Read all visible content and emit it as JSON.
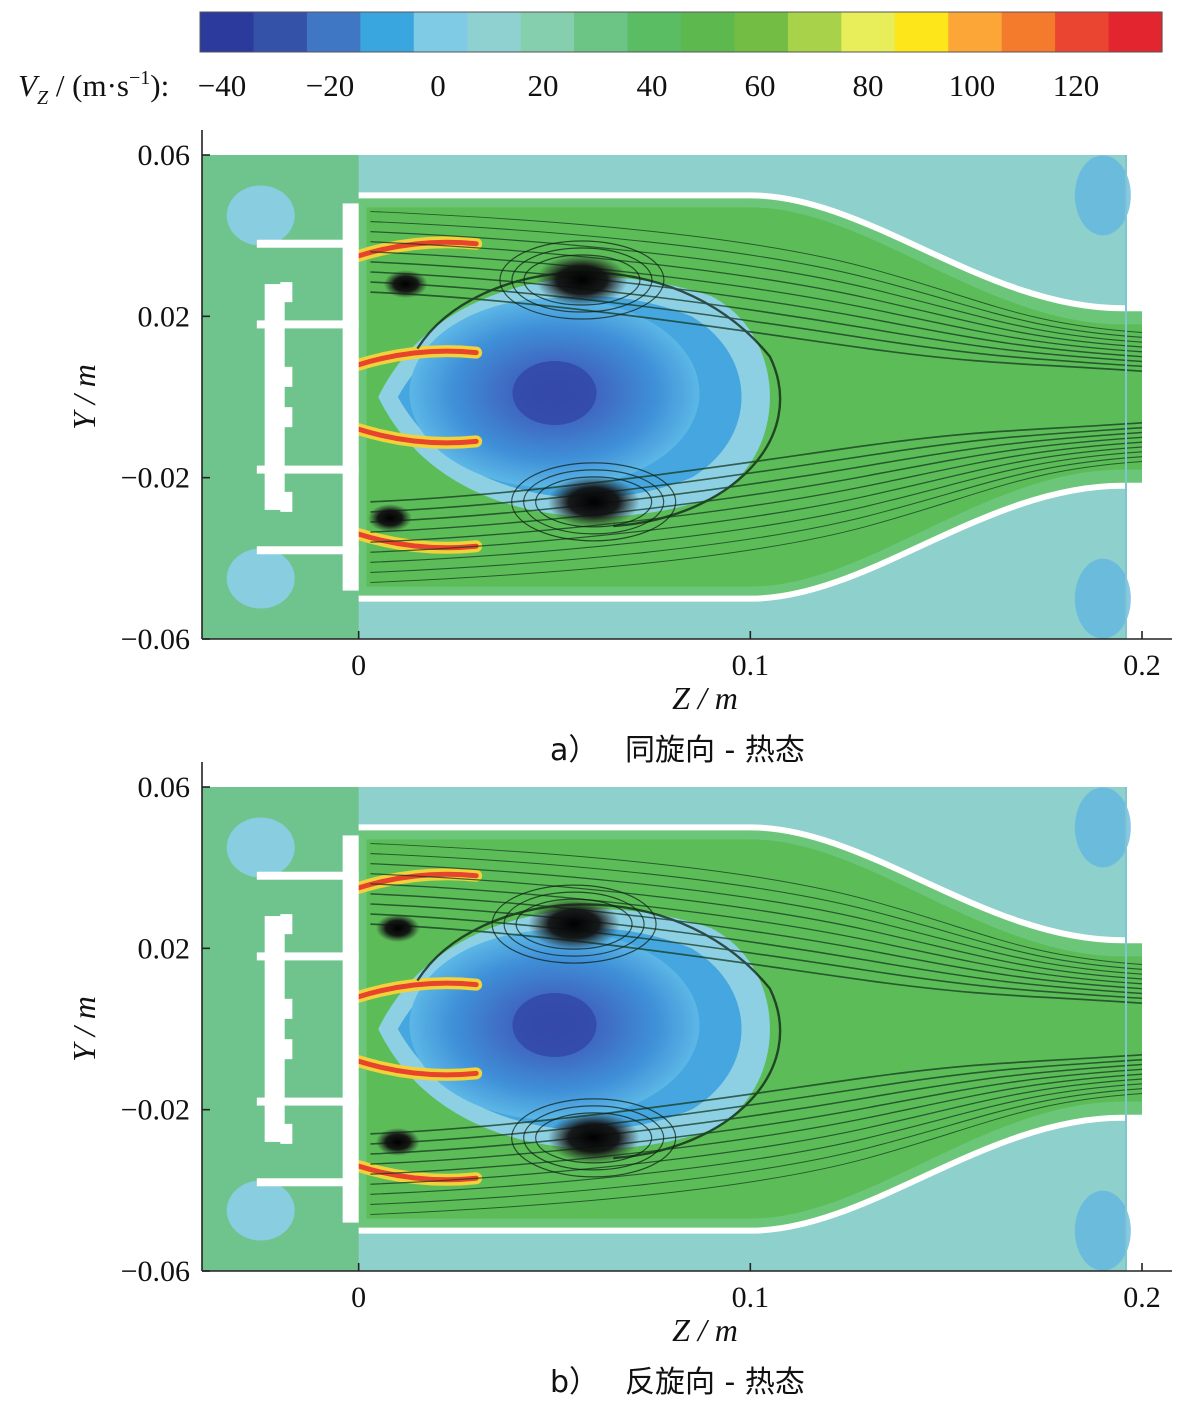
{
  "colorbar": {
    "label_prefix": "V",
    "label_sub": "Z",
    "label_rest": " / (m·s",
    "label_sup": "−1",
    "label_end": "):",
    "ticks": [
      "−40",
      "−20",
      "0",
      "20",
      "40",
      "60",
      "80",
      "100",
      "120"
    ],
    "colors": [
      "#2b3a9c",
      "#3452a8",
      "#3f77c4",
      "#3aa6e0",
      "#7fcbe6",
      "#8fd0d0",
      "#86cfae",
      "#6cc585",
      "#5bbd63",
      "#5db84e",
      "#74bd45",
      "#a8d24a",
      "#e8ee5a",
      "#fde61a",
      "#fca638",
      "#f47b2c",
      "#ea4530",
      "#e2252e"
    ]
  },
  "chart_data": [
    {
      "type": "heatmap",
      "panel": "a",
      "caption_letter": "a）",
      "caption_text": "同旋向 - 热态",
      "xlabel": "Z / m",
      "ylabel": "Y / m",
      "xlim": [
        -0.04,
        0.2
      ],
      "ylim": [
        -0.06,
        0.06
      ],
      "xticks": [
        "0",
        "0.1",
        "0.2"
      ],
      "yticks": [
        "0.06",
        "0.02",
        "−0.02",
        "−0.06"
      ],
      "vz_range": [
        -40,
        130
      ],
      "recirculation_vortices": [
        {
          "z": 0.057,
          "y": 0.029
        },
        {
          "z": 0.06,
          "y": -0.026
        },
        {
          "z": 0.012,
          "y": 0.028
        },
        {
          "z": 0.008,
          "y": -0.03
        }
      ]
    },
    {
      "type": "heatmap",
      "panel": "b",
      "caption_letter": "b）",
      "caption_text": "反旋向 - 热态",
      "xlabel": "Z / m",
      "ylabel": "Y / m",
      "xlim": [
        -0.04,
        0.2
      ],
      "ylim": [
        -0.06,
        0.06
      ],
      "xticks": [
        "0",
        "0.1",
        "0.2"
      ],
      "yticks": [
        "0.06",
        "0.02",
        "−0.02",
        "−0.06"
      ],
      "vz_range": [
        -40,
        130
      ],
      "recirculation_vortices": [
        {
          "z": 0.055,
          "y": 0.026
        },
        {
          "z": 0.06,
          "y": -0.027
        },
        {
          "z": 0.01,
          "y": 0.025
        },
        {
          "z": 0.01,
          "y": -0.028
        }
      ]
    }
  ]
}
